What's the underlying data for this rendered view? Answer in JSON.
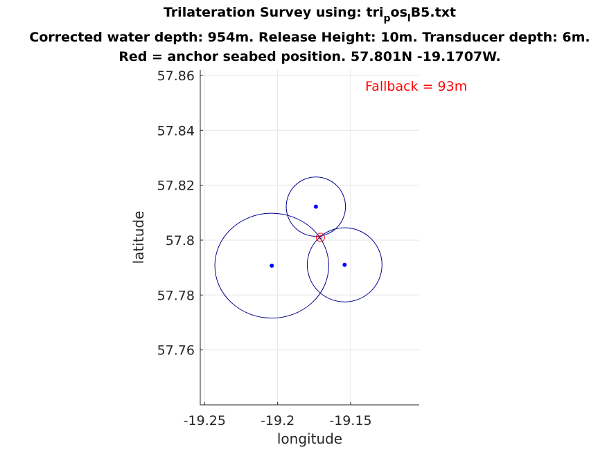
{
  "chart_data": {
    "type": "scatter",
    "title_lines": [
      [
        "Trilateration Survey using: tri",
        "p",
        "os",
        "l",
        "B5.txt"
      ],
      "Corrected water depth: 954m. Release Height: 10m. Transducer depth: 6m.",
      "Red = anchor seabed position. 57.801N -19.1707W."
    ],
    "xlabel": "longitude",
    "ylabel": "latitude",
    "xlim": [
      -19.253,
      -19.103
    ],
    "ylim": [
      57.74,
      57.862
    ],
    "xticks": [
      -19.25,
      -19.2,
      -19.15
    ],
    "xtick_labels": [
      "-19.25",
      "-19.2",
      "-19.15"
    ],
    "yticks": [
      57.76,
      57.78,
      57.8,
      57.82,
      57.84,
      57.86
    ],
    "ytick_labels": [
      "57.76",
      "57.78",
      "57.8",
      "57.82",
      "57.84",
      "57.86"
    ],
    "grid": true,
    "annotation": {
      "text": "Fallback =    93m",
      "color": "#ff0000"
    },
    "colors": {
      "points": "#0000ff",
      "circles": "#00008b",
      "anchor": "#ff0000",
      "grid": "#e5e5e5",
      "axes": "#262626"
    },
    "transponders": [
      {
        "x": -19.1738,
        "y": 57.8122,
        "range_lon": 0.0203,
        "range_lat": 0.0108
      },
      {
        "x": -19.204,
        "y": 57.7907,
        "range_lon": 0.039,
        "range_lat": 0.0191
      },
      {
        "x": -19.1541,
        "y": 57.791,
        "range_lon": 0.0256,
        "range_lat": 0.0135
      }
    ],
    "anchor": {
      "x": -19.1707,
      "y": 57.801
    }
  }
}
